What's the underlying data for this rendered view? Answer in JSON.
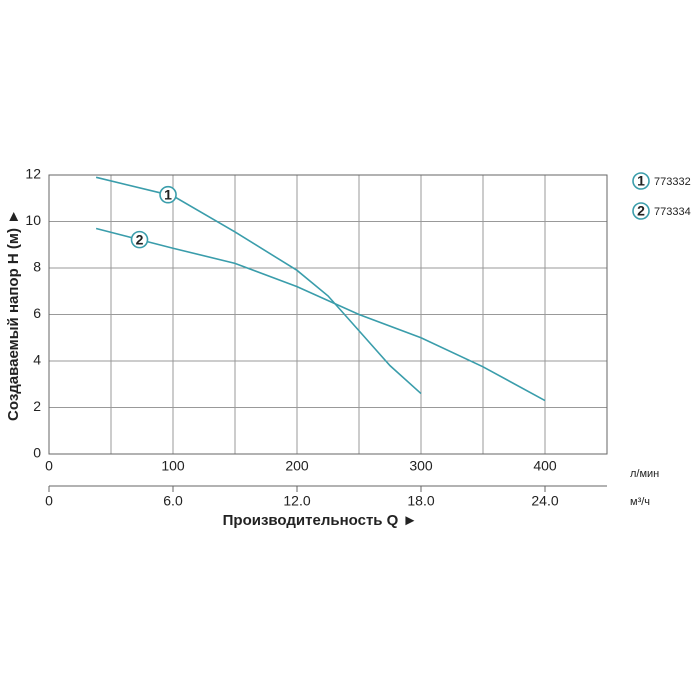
{
  "chart_data": {
    "type": "line",
    "y_label": "Создаваемый напор H (м) ►",
    "x_label": "Производительность Q ►",
    "x_unit": "л/мин",
    "x2_unit": "м³/ч",
    "xlim": [
      0,
      450
    ],
    "xticks": [
      0,
      100,
      200,
      300,
      400
    ],
    "minor_xticks": [
      50,
      150,
      250,
      350
    ],
    "x2lim": [
      0,
      27
    ],
    "x2ticks": [
      0,
      {
        "value": 6,
        "label": "6.0"
      },
      {
        "value": 12,
        "label": "12.0"
      },
      {
        "value": 18,
        "label": "18.0"
      },
      {
        "value": 24,
        "label": "24.0"
      }
    ],
    "ylim": [
      0,
      12
    ],
    "yticks": [
      0,
      2,
      4,
      6,
      8,
      10,
      12
    ],
    "grid": true,
    "series": [
      {
        "name": "773332",
        "marker_label": "1",
        "color": "#3a9dab",
        "x": [
          38,
          100,
          150,
          200,
          225,
          250,
          275,
          300
        ],
        "values": [
          11.9,
          11.1,
          9.55,
          7.9,
          6.8,
          5.3,
          3.8,
          2.6
        ]
      },
      {
        "name": "773334",
        "marker_label": "2",
        "color": "#3a9dab",
        "x": [
          38,
          100,
          150,
          200,
          250,
          300,
          350,
          400
        ],
        "values": [
          9.7,
          8.85,
          8.2,
          7.2,
          6.0,
          5.0,
          3.75,
          2.3
        ]
      }
    ]
  }
}
